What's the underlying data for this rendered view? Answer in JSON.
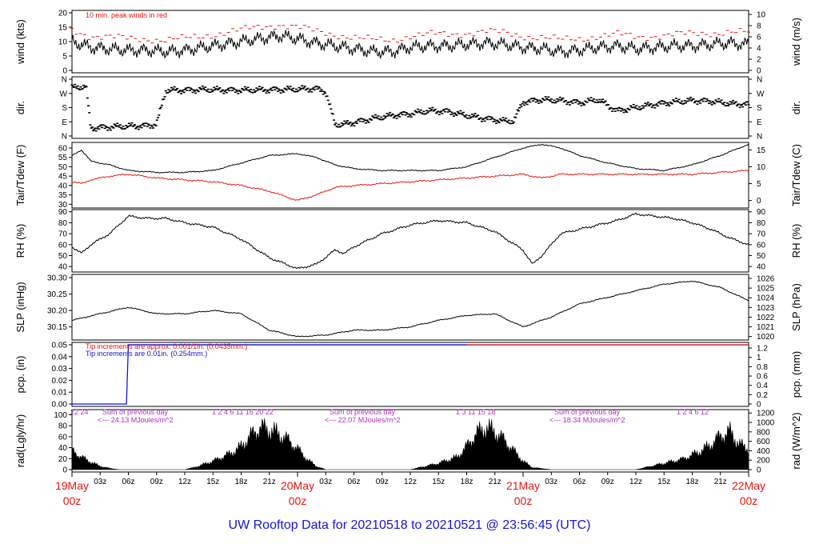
{
  "chart_data": {
    "type": "line",
    "title": "UW Rooftop Data for 20210518  to  20210521 @ 23:56:45  (UTC)",
    "colors": {
      "primary": "#000000",
      "dewpoint": "#e8170f",
      "gust": "#e8170f",
      "pcp_fine": "#e8170f",
      "pcp_coarse": "#1515d6",
      "radiation_note": "#b030c0",
      "title": "#1515d6",
      "day_label": "#e8170f"
    },
    "x_axis": {
      "unit": "hours since 19May 00z",
      "range": [
        0,
        72
      ],
      "hour_ticks": [
        {
          "h": 3,
          "label": "03z"
        },
        {
          "h": 6,
          "label": "06z"
        },
        {
          "h": 9,
          "label": "09z"
        },
        {
          "h": 12,
          "label": "12z"
        },
        {
          "h": 15,
          "label": "15z"
        },
        {
          "h": 18,
          "label": "18z"
        },
        {
          "h": 21,
          "label": "21z"
        },
        {
          "h": 27,
          "label": "03z"
        },
        {
          "h": 30,
          "label": "06z"
        },
        {
          "h": 33,
          "label": "09z"
        },
        {
          "h": 36,
          "label": "12z"
        },
        {
          "h": 39,
          "label": "15z"
        },
        {
          "h": 42,
          "label": "18z"
        },
        {
          "h": 45,
          "label": "21z"
        },
        {
          "h": 51,
          "label": "03z"
        },
        {
          "h": 54,
          "label": "06z"
        },
        {
          "h": 57,
          "label": "09z"
        },
        {
          "h": 60,
          "label": "12z"
        },
        {
          "h": 63,
          "label": "15z"
        },
        {
          "h": 66,
          "label": "18z"
        },
        {
          "h": 69,
          "label": "21z"
        }
      ],
      "day_ticks": [
        {
          "h": 0,
          "date": "19May",
          "zulu": "00z"
        },
        {
          "h": 24,
          "date": "20May",
          "zulu": "00z"
        },
        {
          "h": 48,
          "date": "21May",
          "zulu": "00z"
        },
        {
          "h": 72,
          "date": "22May",
          "zulu": "00z"
        }
      ]
    },
    "panels": {
      "wind": {
        "ylabel_left": "wind (kts)",
        "ylabel_right": "wind (m/s)",
        "left_range": [
          0,
          20
        ],
        "left_ticks": [
          "0",
          "5",
          "10",
          "15",
          "20"
        ],
        "right_range": [
          0,
          10.29
        ],
        "right_ticks": [
          "0",
          "2",
          "4",
          "6",
          "8",
          "10"
        ],
        "note": "10 min. peak winds in red",
        "mean_speed_hours": [
          0,
          2,
          4,
          6,
          8,
          10,
          12,
          14,
          16,
          18,
          20,
          22,
          24,
          26,
          28,
          30,
          32,
          34,
          36,
          38,
          40,
          42,
          44,
          46,
          48,
          50,
          52,
          54,
          56,
          58,
          60,
          62,
          64,
          66,
          68,
          70,
          72
        ],
        "mean_speed_kts": [
          10,
          8,
          7.5,
          7,
          7,
          6.5,
          7,
          8,
          9,
          10,
          11,
          12,
          11,
          9.5,
          8.5,
          7.5,
          6.5,
          6.5,
          8,
          8.5,
          8.5,
          9,
          9.5,
          9,
          8,
          7.5,
          6.5,
          7,
          8,
          8.5,
          7.5,
          8,
          8.5,
          8.5,
          9,
          9.5,
          9
        ],
        "peak_offset_kts": 4
      },
      "direction": {
        "ylabel_left": "dir.",
        "ylabel_right": "dir.",
        "range_deg": [
          0,
          360
        ],
        "ticks": [
          "N",
          "E",
          "S",
          "W",
          "N"
        ],
        "hours": [
          0,
          1.5,
          2,
          5,
          8,
          9,
          10,
          12,
          14,
          17,
          20,
          23,
          26,
          27,
          28,
          29,
          30,
          32,
          34,
          36,
          38,
          40,
          42,
          44,
          46,
          47,
          48,
          50,
          52,
          54,
          56,
          58,
          60,
          62,
          64,
          66,
          68,
          70,
          72
        ],
        "degrees": [
          305,
          315,
          50,
          60,
          65,
          75,
          290,
          290,
          295,
          290,
          292,
          295,
          300,
          280,
          72,
          75,
          85,
          110,
          130,
          140,
          160,
          155,
          130,
          110,
          95,
          95,
          215,
          230,
          225,
          210,
          230,
          160,
          180,
          200,
          215,
          225,
          220,
          205,
          200
        ]
      },
      "temperature": {
        "ylabel_left": "Tair/Tdew (F)",
        "ylabel_right": "Tair/Tdew (C)",
        "left_range": [
          28,
          63
        ],
        "left_ticks": [
          "30",
          "35",
          "40",
          "45",
          "50",
          "55",
          "60"
        ],
        "right_ticks": [
          "0",
          "5",
          "10",
          "15"
        ],
        "hours": [
          0,
          1,
          2,
          4,
          6,
          9,
          12,
          15,
          18,
          21,
          24,
          26,
          28,
          30,
          33,
          36,
          39,
          42,
          45,
          48,
          50,
          52,
          54,
          57,
          60,
          63,
          66,
          69,
          72
        ],
        "air_temp_f": [
          56,
          59,
          53,
          51,
          48,
          47,
          47,
          48,
          52,
          56,
          57,
          55,
          51,
          49,
          48,
          48,
          48,
          50,
          55,
          60,
          62,
          60,
          56,
          52,
          49,
          48,
          51,
          56,
          62
        ],
        "dewpoint_f": [
          42,
          41,
          43,
          45,
          46,
          44,
          43,
          42,
          40,
          37,
          32,
          35,
          39,
          40,
          41,
          42,
          43,
          44,
          45,
          46,
          44,
          46,
          46,
          46,
          46,
          46,
          46,
          47,
          48
        ]
      },
      "humidity": {
        "ylabel_left": "RH (%)",
        "ylabel_right": "RH (%)",
        "range": [
          35,
          92
        ],
        "ticks": [
          "40",
          "50",
          "60",
          "70",
          "80",
          "90"
        ],
        "hours": [
          0,
          1,
          2,
          4,
          6,
          8,
          10,
          12,
          15,
          18,
          21,
          24,
          26,
          28,
          29,
          30,
          33,
          36,
          39,
          42,
          45,
          48,
          49,
          50,
          52,
          55,
          58,
          60,
          62,
          64,
          66,
          68,
          70,
          72
        ],
        "values": [
          58,
          52,
          60,
          70,
          86,
          84,
          84,
          80,
          76,
          65,
          48,
          38,
          42,
          55,
          52,
          58,
          70,
          78,
          82,
          80,
          72,
          55,
          42,
          50,
          70,
          76,
          82,
          88,
          86,
          84,
          80,
          74,
          66,
          60
        ]
      },
      "pressure": {
        "ylabel_left": "SLP (inHg)",
        "ylabel_right": "SLP (hPa)",
        "range": [
          30.11,
          30.31
        ],
        "ticks": [
          "30.15",
          "30.20",
          "30.25",
          "30.30"
        ],
        "right_ticks": [
          "1020",
          "1021",
          "1022",
          "1023",
          "1024",
          "1025",
          "1026"
        ],
        "hours": [
          0,
          3,
          6,
          9,
          12,
          15,
          18,
          21,
          24,
          27,
          30,
          33,
          36,
          39,
          42,
          45,
          48,
          51,
          54,
          57,
          60,
          63,
          66,
          69,
          72
        ],
        "values": [
          30.17,
          30.19,
          30.21,
          30.19,
          30.19,
          30.2,
          30.19,
          30.14,
          30.12,
          30.125,
          30.14,
          30.14,
          30.15,
          30.17,
          30.185,
          30.19,
          30.15,
          30.18,
          30.22,
          30.24,
          30.26,
          30.28,
          30.29,
          30.27,
          30.23
        ]
      },
      "precipitation": {
        "ylabel_left": "pcp. (in)",
        "ylabel_right": "pcp. (mm)",
        "range": [
          0,
          0.05
        ],
        "ticks": [
          "0.00",
          "0.01",
          "0.02",
          "0.03",
          "0.04",
          "0.05"
        ],
        "right_ticks": [
          "0",
          "0.2",
          "0.4",
          "0.6",
          "0.8",
          "1",
          "1.2"
        ],
        "hours": [
          0,
          5.8,
          6.0,
          72
        ],
        "accum_in": [
          0,
          0,
          0.05,
          0.05
        ],
        "note_fine": "Tip increments are approx. 0.001/1in. (0.0435mm.)",
        "note_coarse": "Tip increments are 0.01in. (0.254mm.)"
      },
      "radiation": {
        "ylabel_left": "rad(Lgly/hr)",
        "ylabel_right": "rad (W/m^2)",
        "range": [
          0,
          105
        ],
        "ticks": [
          "0",
          "20",
          "40",
          "60",
          "80",
          "100"
        ],
        "right_ticks": [
          "0",
          "200",
          "400",
          "600",
          "800",
          "1000",
          "1200"
        ],
        "days": [
          {
            "sum_label": "Sum of previous day",
            "sum_value": "<--- 24.13 MJoules/m^2",
            "hour_marks": "22  24"
          },
          {
            "sum_label": "Sum of previous day",
            "sum_value": "<--- 22.07 MJoules/m^2",
            "hour_marks": "1  2  4  6  11  16  20  22"
          },
          {
            "sum_label": "Sum of previous day",
            "sum_value": "<--- 18.34 MJoules/m^2",
            "hour_marks": "1  3  11  15  18"
          },
          {
            "sum_label": "",
            "sum_value": "",
            "hour_marks": "1  2  4  6  12"
          }
        ],
        "hours": [
          0,
          1,
          2,
          3,
          4,
          5,
          6,
          12,
          13,
          15,
          17,
          18,
          19,
          20,
          21,
          22,
          23,
          24,
          25,
          26,
          27,
          36,
          37,
          39,
          41,
          42,
          43,
          44,
          45,
          46,
          47,
          48,
          49,
          51,
          52,
          60,
          61,
          63,
          65,
          66,
          67,
          68,
          69,
          70,
          71,
          72
        ],
        "values": [
          45,
          30,
          18,
          8,
          3,
          0,
          0,
          0,
          5,
          20,
          40,
          55,
          80,
          100,
          95,
          85,
          70,
          50,
          25,
          8,
          0,
          0,
          5,
          15,
          30,
          55,
          85,
          100,
          90,
          70,
          45,
          20,
          5,
          0,
          0,
          0,
          5,
          15,
          25,
          35,
          45,
          60,
          80,
          90,
          60,
          50
        ]
      }
    }
  }
}
